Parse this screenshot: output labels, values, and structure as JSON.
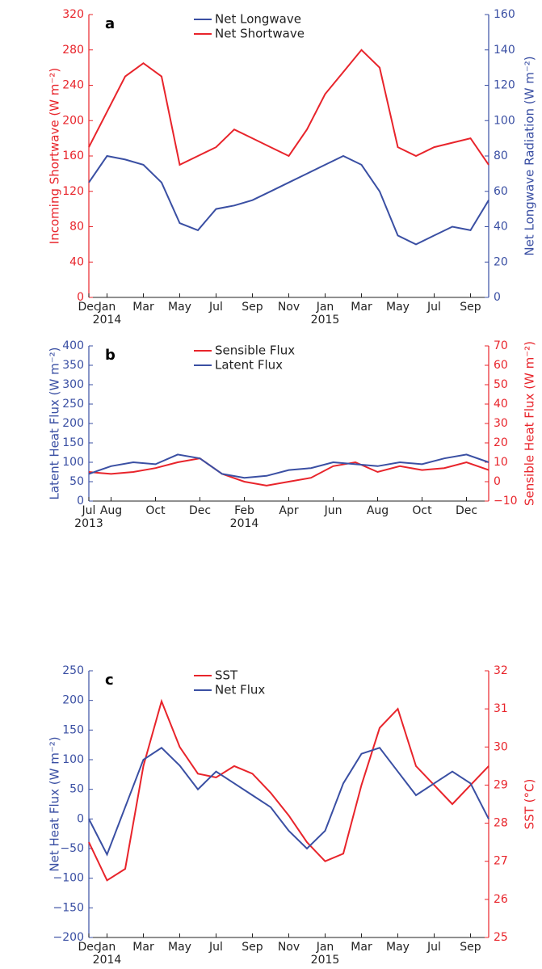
{
  "chart_data": [
    {
      "type": "line",
      "panel_label": "a",
      "xlim": [
        "2013-12",
        "2015-10"
      ],
      "xticks": [
        {
          "value": "2013-12",
          "label": "Dec"
        },
        {
          "value": "2014-01",
          "label": "Jan"
        },
        {
          "value": "2014-03",
          "label": "Mar"
        },
        {
          "value": "2014-05",
          "label": "May"
        },
        {
          "value": "2014-07",
          "label": "Jul"
        },
        {
          "value": "2014-09",
          "label": "Sep"
        },
        {
          "value": "2014-11",
          "label": "Nov"
        },
        {
          "value": "2015-01",
          "label": "Jan"
        },
        {
          "value": "2015-03",
          "label": "Mar"
        },
        {
          "value": "2015-05",
          "label": "May"
        },
        {
          "value": "2015-07",
          "label": "Jul"
        },
        {
          "value": "2015-09",
          "label": "Sep"
        }
      ],
      "year_labels": [
        {
          "value": "2014-01",
          "label": "2014"
        },
        {
          "value": "2015-01",
          "label": "2015"
        }
      ],
      "x": [
        "2013-12",
        "2014-01",
        "2014-02",
        "2014-03",
        "2014-04",
        "2014-05",
        "2014-06",
        "2014-07",
        "2014-08",
        "2014-09",
        "2014-10",
        "2014-11",
        "2014-12",
        "2015-01",
        "2015-02",
        "2015-03",
        "2015-04",
        "2015-05",
        "2015-06",
        "2015-07",
        "2015-08",
        "2015-09",
        "2015-10"
      ],
      "ylabel": "Incoming Shortwave (W m⁻²)",
      "y2label": "Net Longwave Radiation (W m⁻²)",
      "ylim": [
        0,
        320
      ],
      "yticks": [
        0,
        40,
        80,
        120,
        160,
        200,
        240,
        280,
        320
      ],
      "y2lim": [
        0,
        160
      ],
      "y2ticks": [
        0,
        20,
        40,
        60,
        80,
        100,
        120,
        140,
        160
      ],
      "series": [
        {
          "name": "Net Longwave",
          "color": "#3a4fa3",
          "axis": "y2",
          "values": [
            65,
            80,
            78,
            75,
            65,
            42,
            38,
            50,
            52,
            55,
            60,
            65,
            70,
            75,
            80,
            75,
            60,
            35,
            30,
            35,
            40,
            38,
            55
          ]
        },
        {
          "name": "Net Shortwave",
          "color": "#e8242b",
          "axis": "y",
          "values": [
            170,
            210,
            250,
            265,
            250,
            150,
            160,
            170,
            190,
            180,
            170,
            160,
            190,
            230,
            255,
            280,
            260,
            170,
            160,
            170,
            175,
            180,
            150
          ]
        }
      ]
    },
    {
      "type": "line",
      "panel_label": "b",
      "xlim": [
        "2013-07",
        "2015-01"
      ],
      "xticks": [
        {
          "value": "2013-07",
          "label": "Jul"
        },
        {
          "value": "2013-08",
          "label": "Aug"
        },
        {
          "value": "2013-10",
          "label": "Oct"
        },
        {
          "value": "2013-12",
          "label": "Dec"
        },
        {
          "value": "2014-02",
          "label": "Feb"
        },
        {
          "value": "2014-04",
          "label": "Apr"
        },
        {
          "value": "2014-06",
          "label": "Jun"
        },
        {
          "value": "2014-08",
          "label": "Aug"
        },
        {
          "value": "2014-10",
          "label": "Oct"
        },
        {
          "value": "2014-12",
          "label": "Dec"
        }
      ],
      "year_labels": [
        {
          "value": "2013-07",
          "label": "2013"
        },
        {
          "value": "2014-02",
          "label": "2014"
        }
      ],
      "x": [
        "2013-07",
        "2013-08",
        "2013-09",
        "2013-10",
        "2013-11",
        "2013-12",
        "2014-01",
        "2014-02",
        "2014-03",
        "2014-04",
        "2014-05",
        "2014-06",
        "2014-07",
        "2014-08",
        "2014-09",
        "2014-10",
        "2014-11",
        "2014-12",
        "2015-01"
      ],
      "ylabel": "Latent Heat Flux (W m⁻²)",
      "y2label": "Sensible Heat Flux (W m⁻²)",
      "ylim": [
        0,
        400
      ],
      "yticks": [
        0,
        50,
        100,
        150,
        200,
        250,
        300,
        350,
        400
      ],
      "y2lim": [
        -10,
        70
      ],
      "y2ticks": [
        {
          "value": -10,
          "label": "−10"
        },
        0,
        10,
        20,
        30,
        40,
        50,
        60,
        70
      ],
      "series": [
        {
          "name": "Sensible Flux",
          "color": "#e8242b",
          "axis": "y2",
          "values": [
            5,
            4,
            5,
            7,
            10,
            12,
            4,
            0,
            -2,
            0,
            2,
            8,
            10,
            5,
            8,
            6,
            7,
            10,
            6
          ]
        },
        {
          "name": "Latent Flux",
          "color": "#3a4fa3",
          "axis": "y",
          "values": [
            70,
            90,
            100,
            95,
            120,
            110,
            70,
            60,
            65,
            80,
            85,
            100,
            95,
            90,
            100,
            95,
            110,
            120,
            100
          ]
        }
      ]
    },
    {
      "type": "line",
      "panel_label": "c",
      "xlim": [
        "2013-12",
        "2015-10"
      ],
      "xticks": [
        {
          "value": "2013-12",
          "label": "Dec"
        },
        {
          "value": "2014-01",
          "label": "Jan"
        },
        {
          "value": "2014-03",
          "label": "Mar"
        },
        {
          "value": "2014-05",
          "label": "May"
        },
        {
          "value": "2014-07",
          "label": "Jul"
        },
        {
          "value": "2014-09",
          "label": "Sep"
        },
        {
          "value": "2014-11",
          "label": "Nov"
        },
        {
          "value": "2015-01",
          "label": "Jan"
        },
        {
          "value": "2015-03",
          "label": "Mar"
        },
        {
          "value": "2015-05",
          "label": "May"
        },
        {
          "value": "2015-07",
          "label": "Jul"
        },
        {
          "value": "2015-09",
          "label": "Sep"
        }
      ],
      "year_labels": [
        {
          "value": "2014-01",
          "label": "2014"
        },
        {
          "value": "2015-01",
          "label": "2015"
        }
      ],
      "x": [
        "2013-12",
        "2014-01",
        "2014-02",
        "2014-03",
        "2014-04",
        "2014-05",
        "2014-06",
        "2014-07",
        "2014-08",
        "2014-09",
        "2014-10",
        "2014-11",
        "2014-12",
        "2015-01",
        "2015-02",
        "2015-03",
        "2015-04",
        "2015-05",
        "2015-06",
        "2015-07",
        "2015-08",
        "2015-09",
        "2015-10"
      ],
      "ylabel": "Net Heat Flux (W m⁻²)",
      "y2label": "SST (°C)",
      "ylim": [
        -200,
        250
      ],
      "yticks": [
        {
          "value": -200,
          "label": "−200"
        },
        {
          "value": -150,
          "label": "−150"
        },
        {
          "value": -100,
          "label": "−100"
        },
        {
          "value": -50,
          "label": "−50"
        },
        0,
        50,
        100,
        150,
        200,
        250
      ],
      "y2lim": [
        25,
        32
      ],
      "y2ticks": [
        25,
        26,
        27,
        28,
        29,
        30,
        31,
        32
      ],
      "series": [
        {
          "name": "SST",
          "color": "#e8242b",
          "axis": "y2",
          "values": [
            27.5,
            26.5,
            26.8,
            29.5,
            31.2,
            30.0,
            29.3,
            29.2,
            29.5,
            29.3,
            28.8,
            28.2,
            27.5,
            27.0,
            27.2,
            29.0,
            30.5,
            31.0,
            29.5,
            29.0,
            28.5,
            29.0,
            29.5
          ]
        },
        {
          "name": "Net Flux",
          "color": "#3a4fa3",
          "axis": "y",
          "values": [
            0,
            -60,
            20,
            100,
            120,
            90,
            50,
            80,
            60,
            40,
            20,
            -20,
            -50,
            -20,
            60,
            110,
            120,
            80,
            40,
            60,
            80,
            60,
            0
          ]
        }
      ]
    }
  ]
}
